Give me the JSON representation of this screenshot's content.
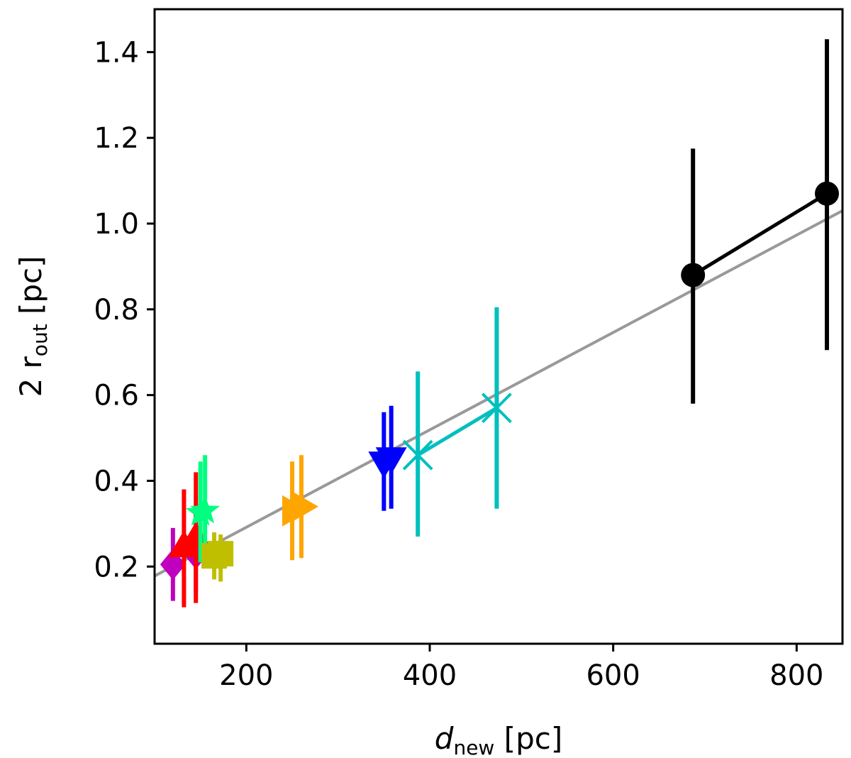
{
  "chart_data": {
    "type": "scatter",
    "title": "",
    "xlabel": {
      "main": "d",
      "sub": "new",
      "unit": " [pc]"
    },
    "ylabel": {
      "prefix": "2 r",
      "sub": "out",
      "unit": " [pc]"
    },
    "xlim": [
      100,
      850
    ],
    "ylim": [
      0.02,
      1.5
    ],
    "xticks": [
      200,
      400,
      600,
      800
    ],
    "xtick_labels": [
      "200",
      "400",
      "600",
      "800"
    ],
    "yticks": [
      0.2,
      0.4,
      0.6,
      0.8,
      1.0,
      1.2,
      1.4
    ],
    "ytick_labels": [
      "0.2",
      "0.4",
      "0.6",
      "0.8",
      "1.0",
      "1.2",
      "1.4"
    ],
    "fit_line": {
      "x": [
        100,
        850
      ],
      "y": [
        0.178,
        1.03
      ],
      "color": "#999999"
    },
    "series": [
      {
        "name": "magenta-diamond",
        "marker": "diamond",
        "color": "#bf00bf",
        "connected": false,
        "points": [
          {
            "x": 120,
            "y": 0.205,
            "ylo": 0.12,
            "yhi": 0.29
          },
          {
            "x": 145,
            "y": 0.23,
            "ylo": 0.14,
            "yhi": 0.33
          }
        ]
      },
      {
        "name": "red-triangle-up",
        "marker": "triangle-up",
        "color": "#ff0000",
        "connected": false,
        "points": [
          {
            "x": 132,
            "y": 0.245,
            "ylo": 0.105,
            "yhi": 0.38
          },
          {
            "x": 145,
            "y": 0.265,
            "ylo": 0.115,
            "yhi": 0.42
          }
        ]
      },
      {
        "name": "green-star",
        "marker": "star",
        "color": "#00ff7f",
        "connected": false,
        "points": [
          {
            "x": 150,
            "y": 0.325,
            "ylo": 0.21,
            "yhi": 0.445
          },
          {
            "x": 155,
            "y": 0.33,
            "ylo": 0.2,
            "yhi": 0.46
          }
        ]
      },
      {
        "name": "olive-square",
        "marker": "square",
        "color": "#bfbf00",
        "connected": false,
        "points": [
          {
            "x": 165,
            "y": 0.225,
            "ylo": 0.17,
            "yhi": 0.28
          },
          {
            "x": 172,
            "y": 0.23,
            "ylo": 0.165,
            "yhi": 0.275
          }
        ]
      },
      {
        "name": "orange-triangle-right",
        "marker": "triangle-right",
        "color": "#ffa500",
        "connected": false,
        "points": [
          {
            "x": 250,
            "y": 0.33,
            "ylo": 0.215,
            "yhi": 0.445
          },
          {
            "x": 260,
            "y": 0.34,
            "ylo": 0.22,
            "yhi": 0.46
          }
        ]
      },
      {
        "name": "blue-triangle-down",
        "marker": "triangle-down",
        "color": "#0000ff",
        "connected": false,
        "points": [
          {
            "x": 350,
            "y": 0.445,
            "ylo": 0.33,
            "yhi": 0.56
          },
          {
            "x": 358,
            "y": 0.455,
            "ylo": 0.335,
            "yhi": 0.575
          }
        ]
      },
      {
        "name": "cyan-x",
        "marker": "x",
        "color": "#00bfbf",
        "connected": true,
        "points": [
          {
            "x": 387,
            "y": 0.46,
            "ylo": 0.27,
            "yhi": 0.655
          },
          {
            "x": 473,
            "y": 0.57,
            "ylo": 0.335,
            "yhi": 0.805
          }
        ]
      },
      {
        "name": "black-circle",
        "marker": "circle",
        "color": "#000000",
        "connected": true,
        "points": [
          {
            "x": 687,
            "y": 0.88,
            "ylo": 0.58,
            "yhi": 1.175
          },
          {
            "x": 833,
            "y": 1.07,
            "ylo": 0.705,
            "yhi": 1.43
          }
        ]
      }
    ]
  }
}
